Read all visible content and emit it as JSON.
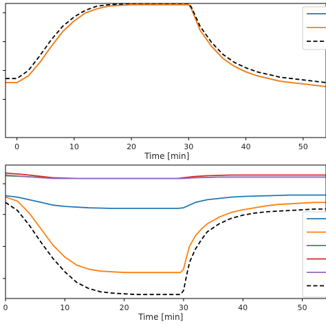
{
  "chart_data": [
    {
      "type": "line",
      "title": "",
      "xlabel": "Time [min]",
      "ylabel": "",
      "xlim": [
        -2,
        54
      ],
      "ylim": [
        0,
        1
      ],
      "x_ticks": [
        0,
        10,
        20,
        30,
        40,
        50
      ],
      "y_ticks": [
        0.285,
        0.5,
        0.715,
        0.93
      ],
      "grid": false,
      "legend": {
        "placement": "top-right",
        "entries": [
          "",
          "",
          ""
        ]
      },
      "series": [
        {
          "color": "#1f77b4",
          "style": "solid",
          "x": [
            -2,
            0,
            2,
            4,
            6,
            8,
            10,
            12,
            14,
            16,
            18,
            20,
            22,
            24,
            26,
            28,
            30,
            30.5,
            32,
            34,
            36,
            38,
            40,
            42,
            44,
            46,
            48,
            50,
            52,
            54
          ],
          "y": [
            0.41,
            0.41,
            0.46,
            0.56,
            0.68,
            0.79,
            0.87,
            0.93,
            0.96,
            0.98,
            0.985,
            0.99,
            0.99,
            0.99,
            0.99,
            0.99,
            0.99,
            0.96,
            0.8,
            0.68,
            0.59,
            0.53,
            0.49,
            0.46,
            0.44,
            0.42,
            0.41,
            0.4,
            0.39,
            0.38
          ]
        },
        {
          "color": "#ff7f0e",
          "style": "solid",
          "x": [
            -2,
            0,
            2,
            4,
            6,
            8,
            10,
            12,
            14,
            16,
            18,
            20,
            22,
            24,
            26,
            28,
            30,
            30.5,
            32,
            34,
            36,
            38,
            40,
            42,
            44,
            46,
            48,
            50,
            52,
            54
          ],
          "y": [
            0.41,
            0.41,
            0.46,
            0.56,
            0.68,
            0.79,
            0.87,
            0.93,
            0.96,
            0.98,
            0.985,
            0.99,
            0.99,
            0.99,
            0.99,
            0.99,
            0.99,
            0.96,
            0.8,
            0.68,
            0.59,
            0.53,
            0.49,
            0.46,
            0.44,
            0.42,
            0.41,
            0.4,
            0.39,
            0.38
          ]
        },
        {
          "color": "#000000",
          "style": "dashed",
          "x": [
            -2,
            0,
            2,
            4,
            6,
            8,
            10,
            12,
            14,
            16,
            18,
            20,
            22,
            24,
            26,
            28,
            30,
            30.5,
            32,
            34,
            36,
            38,
            40,
            42,
            44,
            46,
            48,
            50,
            52,
            54
          ],
          "y": [
            0.44,
            0.44,
            0.5,
            0.61,
            0.73,
            0.83,
            0.9,
            0.95,
            0.98,
            0.99,
            0.995,
            1.0,
            1.0,
            1.0,
            1.0,
            1.0,
            1.0,
            0.97,
            0.83,
            0.71,
            0.62,
            0.56,
            0.52,
            0.49,
            0.47,
            0.45,
            0.44,
            0.43,
            0.42,
            0.41
          ]
        }
      ]
    },
    {
      "type": "line",
      "title": "",
      "xlabel": "Time [min]",
      "ylabel": "",
      "xlim": [
        0,
        54
      ],
      "ylim": [
        0,
        1
      ],
      "x_ticks": [
        0,
        10,
        20,
        30,
        40,
        50
      ],
      "y_ticks": [
        0.15,
        0.39,
        0.63,
        0.86
      ],
      "grid": false,
      "legend": {
        "placement": "right",
        "entries": [
          "",
          "",
          "",
          "",
          "",
          ""
        ]
      },
      "series": [
        {
          "color": "#1f77b4",
          "style": "solid",
          "x": [
            0,
            2,
            4,
            6,
            8,
            10,
            14,
            18,
            22,
            26,
            29,
            30,
            31,
            32,
            34,
            36,
            38,
            40,
            44,
            48,
            52,
            54
          ],
          "y": [
            0.77,
            0.76,
            0.74,
            0.72,
            0.7,
            0.69,
            0.68,
            0.675,
            0.675,
            0.675,
            0.675,
            0.68,
            0.7,
            0.72,
            0.74,
            0.75,
            0.76,
            0.765,
            0.77,
            0.775,
            0.775,
            0.775
          ]
        },
        {
          "color": "#ff7f0e",
          "style": "solid",
          "x": [
            0,
            2,
            4,
            6,
            8,
            10,
            12,
            14,
            16,
            18,
            20,
            22,
            24,
            26,
            28,
            29.5,
            30,
            30.5,
            31,
            32,
            33,
            34,
            36,
            38,
            40,
            42,
            44,
            46,
            48,
            50,
            52,
            54
          ],
          "y": [
            0.76,
            0.73,
            0.64,
            0.52,
            0.4,
            0.31,
            0.25,
            0.22,
            0.205,
            0.2,
            0.195,
            0.195,
            0.195,
            0.195,
            0.195,
            0.195,
            0.22,
            0.31,
            0.39,
            0.47,
            0.52,
            0.56,
            0.61,
            0.645,
            0.665,
            0.68,
            0.695,
            0.705,
            0.71,
            0.715,
            0.72,
            0.72
          ]
        },
        {
          "color": "#2ca02c",
          "style": "solid",
          "x": [
            0,
            5,
            8,
            12,
            20,
            26,
            29,
            30,
            32,
            36,
            40,
            46,
            54
          ],
          "y": [
            0.92,
            0.91,
            0.9,
            0.9,
            0.9,
            0.9,
            0.9,
            0.9,
            0.905,
            0.91,
            0.91,
            0.91,
            0.91
          ]
        },
        {
          "color": "#d62728",
          "style": "solid",
          "x": [
            0,
            3,
            6,
            8,
            12,
            20,
            26,
            29,
            30,
            32,
            34,
            38,
            44,
            50,
            54
          ],
          "y": [
            0.94,
            0.93,
            0.915,
            0.905,
            0.9,
            0.9,
            0.9,
            0.9,
            0.905,
            0.915,
            0.92,
            0.925,
            0.925,
            0.925,
            0.925
          ]
        },
        {
          "color": "#9467bd",
          "style": "solid",
          "x": [
            0,
            3,
            6,
            8,
            12,
            20,
            26,
            29,
            30,
            32,
            36,
            42,
            54
          ],
          "y": [
            0.925,
            0.915,
            0.905,
            0.9,
            0.9,
            0.9,
            0.9,
            0.9,
            0.9,
            0.905,
            0.91,
            0.91,
            0.91
          ]
        },
        {
          "color": "#000000",
          "style": "dashed",
          "x": [
            0,
            2,
            4,
            6,
            8,
            10,
            12,
            14,
            16,
            18,
            20,
            22,
            24,
            26,
            28,
            29.5,
            30,
            30.5,
            31,
            32,
            33,
            34,
            36,
            38,
            40,
            42,
            44,
            46,
            48,
            50,
            52,
            54
          ],
          "y": [
            0.72,
            0.66,
            0.55,
            0.42,
            0.3,
            0.2,
            0.12,
            0.075,
            0.05,
            0.04,
            0.035,
            0.03,
            0.03,
            0.03,
            0.03,
            0.03,
            0.06,
            0.17,
            0.27,
            0.37,
            0.44,
            0.5,
            0.56,
            0.6,
            0.625,
            0.64,
            0.65,
            0.655,
            0.66,
            0.665,
            0.67,
            0.67
          ]
        }
      ]
    }
  ]
}
